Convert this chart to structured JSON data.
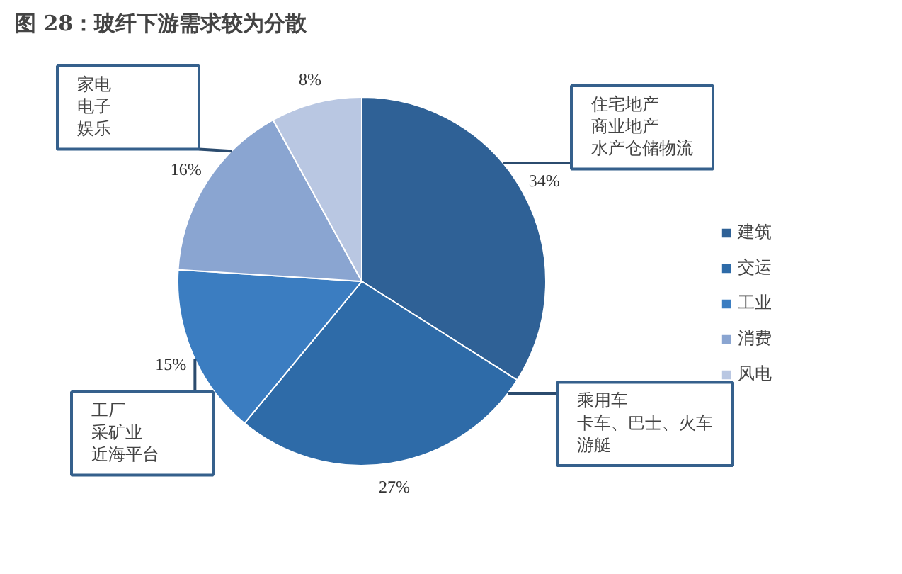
{
  "chart_data": {
    "type": "pie",
    "title": "图 28：玻纤下游需求较为分散",
    "categories": [
      "建筑",
      "交运",
      "工业",
      "消费",
      "风电"
    ],
    "values": [
      34,
      27,
      15,
      16,
      8
    ],
    "colors": [
      "#2f6196",
      "#2e6ba8",
      "#3b7dc1",
      "#8aa5d1",
      "#b9c7e2"
    ],
    "value_labels": [
      "34%",
      "27%",
      "15%",
      "16%",
      "8%"
    ],
    "legend": "right",
    "annotations": [
      {
        "text": "住宅地产",
        "x": "建筑"
      },
      {
        "text": "商业地产",
        "x": "建筑"
      },
      {
        "text": "水产仓储物流",
        "x": "建筑"
      },
      {
        "text": "乘用车",
        "x": "交运"
      },
      {
        "text": "卡车、巴士、火车",
        "x": "交运"
      },
      {
        "text": "游艇",
        "x": "交运"
      },
      {
        "text": "工厂",
        "x": "工业"
      },
      {
        "text": "采矿业",
        "x": "工业"
      },
      {
        "text": "近海平台",
        "x": "工业"
      },
      {
        "text": "家电",
        "x": "消费"
      },
      {
        "text": "电子",
        "x": "消费"
      },
      {
        "text": "娱乐",
        "x": "消费"
      }
    ]
  }
}
